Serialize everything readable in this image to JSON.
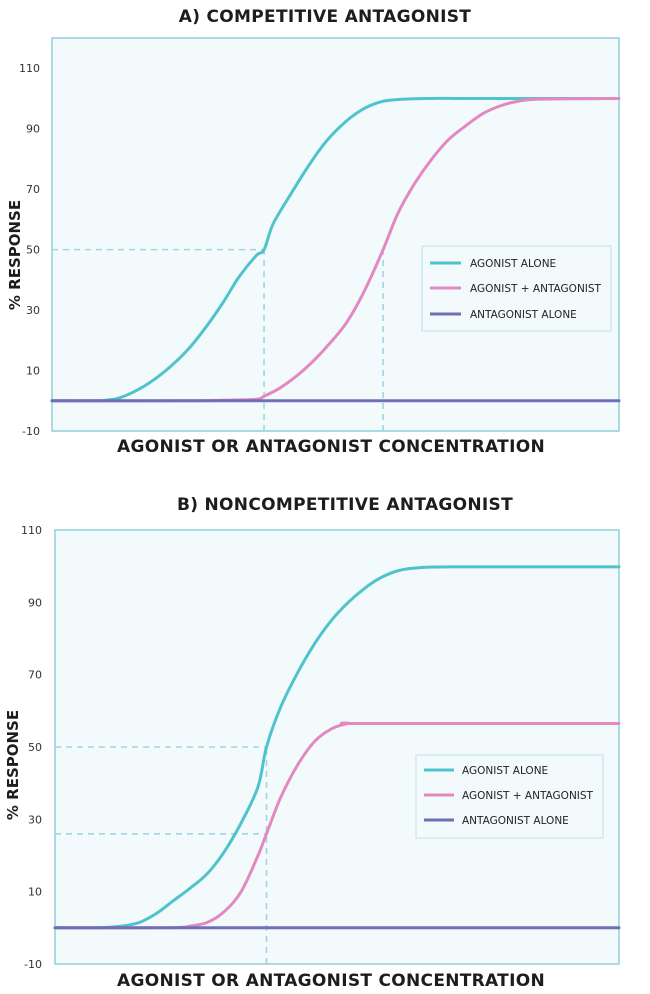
{
  "chart_data": [
    {
      "type": "line",
      "title": "A) COMPETITIVE ANTAGONIST",
      "xlabel": "AGONIST OR ANTAGONIST CONCENTRATION",
      "ylabel": "% RESPONSE",
      "xlim": [
        0,
        100
      ],
      "ylim": [
        -10,
        120
      ],
      "yticks": [
        -10,
        10,
        30,
        50,
        70,
        90,
        110
      ],
      "grid": false,
      "legend_position": "right-middle",
      "reference_lines": [
        {
          "y": 50,
          "x_from": 0,
          "x_to": 37.4
        },
        {
          "x": 37.4,
          "y_from": -10,
          "y_to": 50
        },
        {
          "x": 58.4,
          "y_from": -10,
          "y_to": 50
        }
      ],
      "series": [
        {
          "name": "AGONIST ALONE",
          "color": "#4fc3cc",
          "x": [
            0,
            8,
            10,
            12,
            15,
            18,
            21,
            24,
            27,
            30,
            33,
            36,
            37.4,
            39,
            42,
            45,
            48,
            51,
            54,
            57,
            60,
            66,
            72,
            78,
            84,
            100
          ],
          "y": [
            0,
            0,
            0.3,
            1,
            3.5,
            7,
            11.5,
            17,
            24,
            32,
            41,
            48,
            50,
            58.5,
            68,
            77,
            85,
            91,
            95.5,
            98.3,
            99.5,
            100,
            100,
            100,
            100,
            100
          ]
        },
        {
          "name": "AGONIST + ANTAGONIST",
          "color": "#e389c1",
          "x": [
            0,
            24,
            30,
            36,
            37.4,
            40,
            43,
            46,
            49,
            52,
            55,
            58.4,
            61,
            64,
            67,
            70,
            73,
            76,
            79,
            82,
            86,
            100
          ],
          "y": [
            0,
            0,
            0.2,
            0.5,
            1.5,
            4,
            8,
            13,
            19,
            26,
            36,
            50,
            62,
            72,
            80,
            86.5,
            91,
            95,
            97.5,
            99,
            99.8,
            100
          ]
        },
        {
          "name": "ANTAGONIST ALONE",
          "color": "#6f6fb8",
          "x": [
            0,
            100
          ],
          "y": [
            0,
            0
          ]
        }
      ]
    },
    {
      "type": "line",
      "title": "B) NONCOMPETITIVE ANTAGONIST",
      "xlabel": "AGONIST OR ANTAGONIST CONCENTRATION",
      "ylabel": "% RESPONSE",
      "xlim": [
        0,
        100
      ],
      "ylim": [
        -10,
        110
      ],
      "yticks": [
        -10,
        10,
        30,
        50,
        70,
        90,
        110
      ],
      "grid": false,
      "legend_position": "right-middle",
      "reference_lines": [
        {
          "y": 50,
          "x_from": 0,
          "x_to": 37.5
        },
        {
          "y": 26,
          "x_from": 0,
          "x_to": 37.5
        },
        {
          "x": 37.5,
          "y_from": -10,
          "y_to": 50
        }
      ],
      "series": [
        {
          "name": "AGONIST ALONE",
          "color": "#4fc3cc",
          "x": [
            0,
            8,
            12,
            15,
            18,
            21,
            24,
            27,
            30,
            33,
            36,
            37.5,
            40,
            43,
            46,
            49,
            52,
            55,
            58,
            61,
            64,
            70,
            100
          ],
          "y": [
            0,
            0,
            0.5,
            1.5,
            4,
            7.5,
            11,
            15,
            21,
            29,
            39,
            50,
            61,
            70.5,
            78.5,
            85,
            90,
            94,
            97,
            98.8,
            99.5,
            99.8,
            99.8
          ]
        },
        {
          "name": "AGONIST + ANTAGONIST",
          "color": "#e389c1",
          "x": [
            0,
            20,
            24,
            27,
            30,
            33,
            36,
            37.5,
            40,
            43,
            46,
            49,
            52,
            55,
            100
          ],
          "y": [
            0,
            0,
            0.5,
            1.5,
            4.5,
            10,
            20,
            26,
            36,
            45,
            51.5,
            55,
            56.5,
            56.5,
            56.5
          ]
        },
        {
          "name": "ANTAGONIST ALONE",
          "color": "#6f6fb8",
          "x": [
            0,
            100
          ],
          "y": [
            0,
            0
          ]
        }
      ]
    }
  ]
}
